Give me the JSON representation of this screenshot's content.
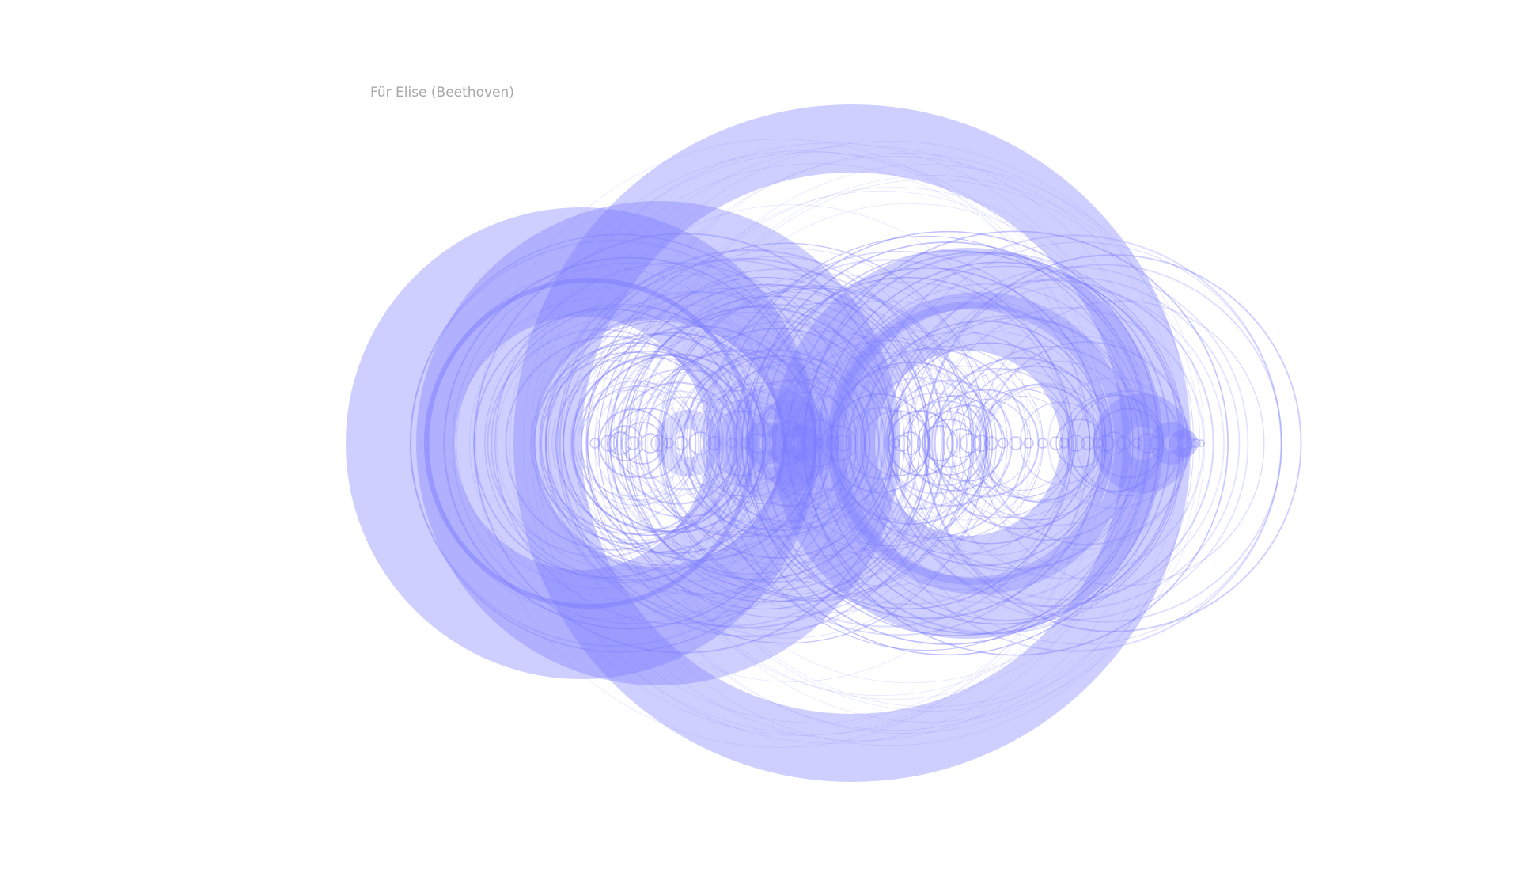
{
  "title": "Für Elise (Beethoven)",
  "colors": {
    "ring": "#7b7bff",
    "background": "#ffffff",
    "title": "#a8a8a8"
  }
}
